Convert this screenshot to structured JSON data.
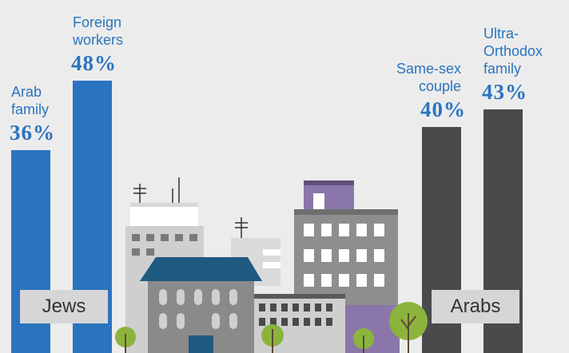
{
  "chart_data": {
    "type": "bar",
    "categories": [
      "Arab family",
      "Foreign workers",
      "Same-sex couple",
      "Ultra-Orthodox family"
    ],
    "series": [
      {
        "name": "Jews",
        "color": "#2a74bf",
        "values": [
          36,
          48,
          null,
          null
        ],
        "value_labels": [
          "36%",
          "48%",
          null,
          null
        ]
      },
      {
        "name": "Arabs",
        "color": "#4a4a4d",
        "values": [
          null,
          null,
          40,
          43
        ],
        "value_labels": [
          null,
          null,
          "40%",
          "43%"
        ]
      }
    ],
    "label_color": "#2a74bf"
  }
}
